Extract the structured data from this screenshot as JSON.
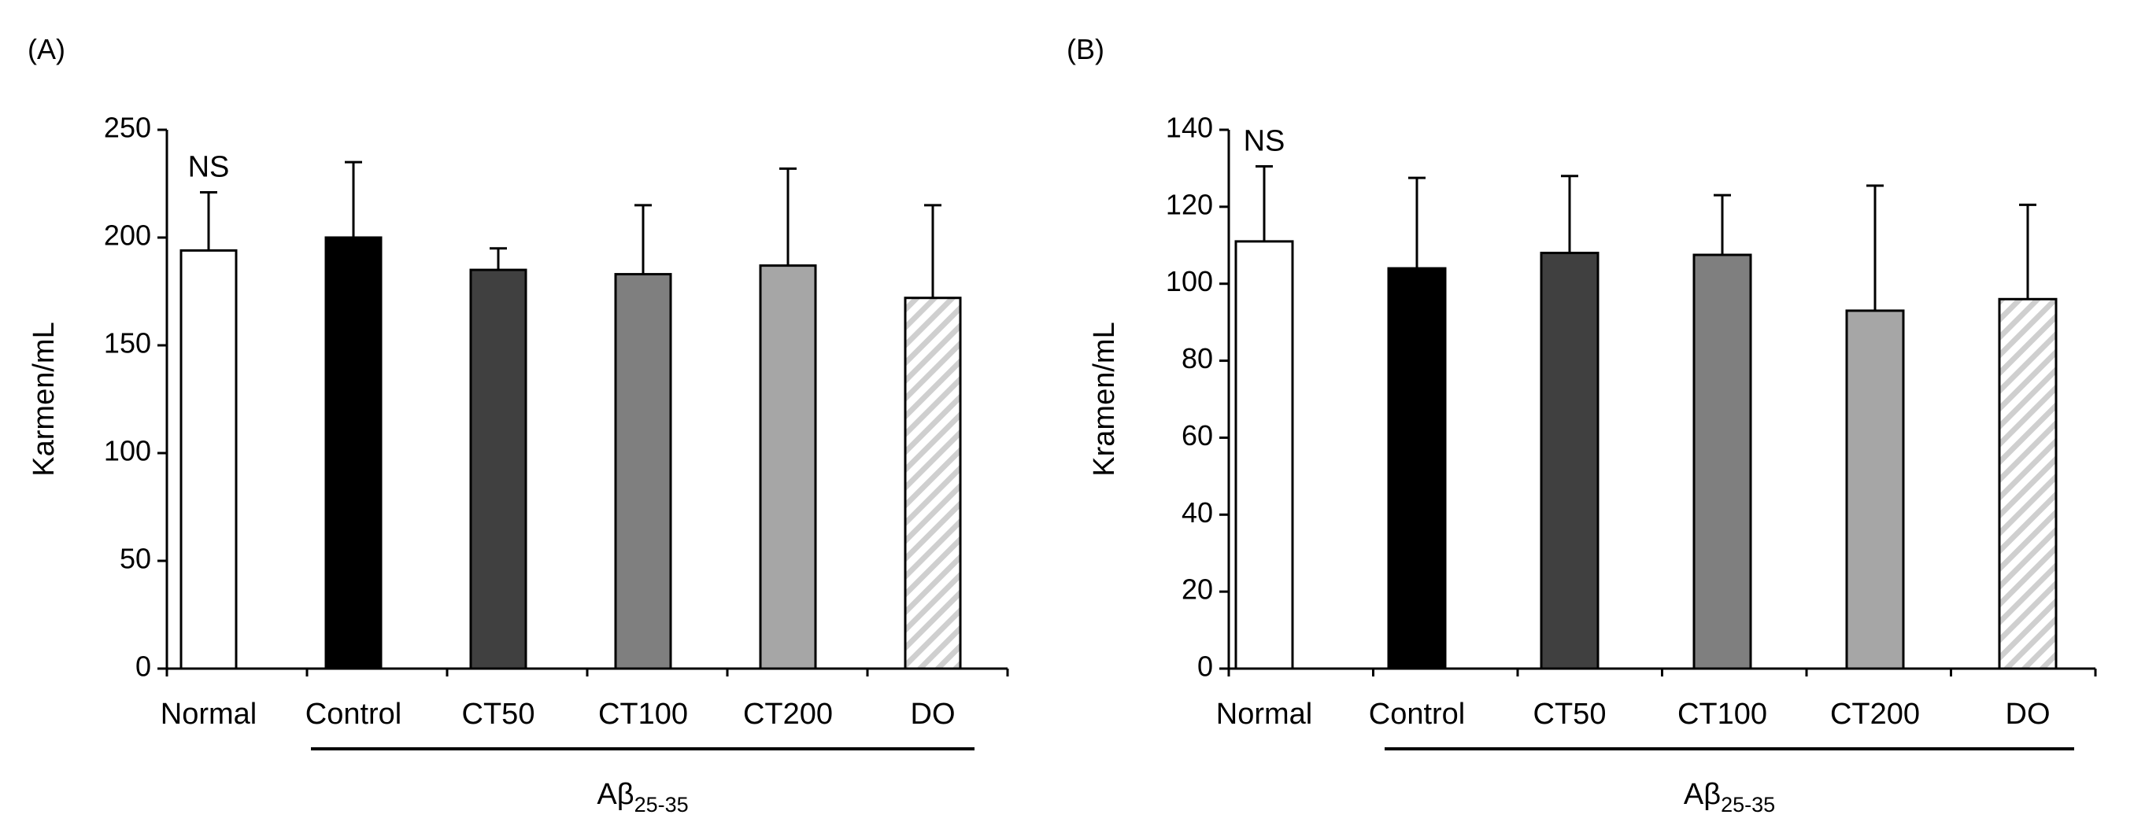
{
  "chart_data": [
    {
      "panel_label": "(A)",
      "type": "bar",
      "ylabel": "Karmen/mL",
      "ylim": [
        0,
        250
      ],
      "yticks": [
        0,
        50,
        100,
        150,
        200,
        250
      ],
      "categories": [
        "Normal",
        "Control",
        "CT50",
        "CT100",
        "CT200",
        "DO"
      ],
      "values": [
        194,
        200,
        185,
        183,
        187,
        172
      ],
      "errors": [
        27,
        35,
        10,
        32,
        45,
        43
      ],
      "fills": [
        "#ffffff",
        "#000000",
        "#404040",
        "#7f7f7f",
        "#a6a6a6",
        "hatch"
      ],
      "annotation": "NS",
      "group_label": {
        "main": "Aβ",
        "sub": "25-35"
      }
    },
    {
      "panel_label": "(B)",
      "type": "bar",
      "ylabel": "Kramen/mL",
      "ylim": [
        0,
        140
      ],
      "yticks": [
        0,
        20,
        40,
        60,
        80,
        100,
        120,
        140
      ],
      "categories": [
        "Normal",
        "Control",
        "CT50",
        "CT100",
        "CT200",
        "DO"
      ],
      "values": [
        111,
        104,
        108,
        107.5,
        93,
        96
      ],
      "errors": [
        19.5,
        23.5,
        20,
        15.5,
        32.5,
        24.5
      ],
      "fills": [
        "#ffffff",
        "#000000",
        "#404040",
        "#7f7f7f",
        "#a6a6a6",
        "hatch"
      ],
      "annotation": "NS",
      "group_label": {
        "main": "Aβ",
        "sub": "25-35"
      }
    }
  ]
}
